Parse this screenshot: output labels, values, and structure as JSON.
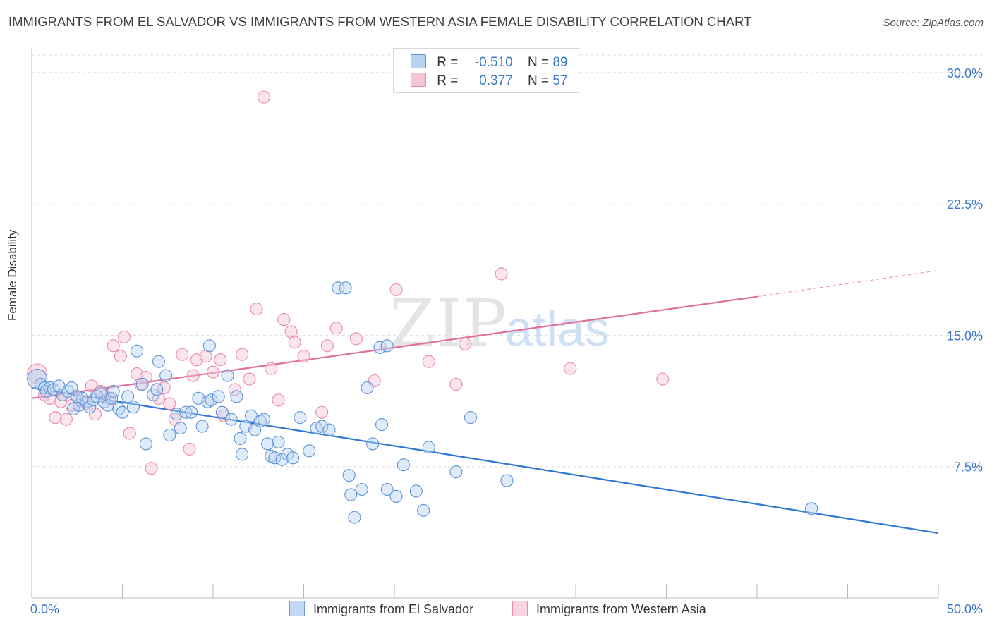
{
  "title": "IMMIGRANTS FROM EL SALVADOR VS IMMIGRANTS FROM WESTERN ASIA FEMALE DISABILITY CORRELATION CHART",
  "source": "Source: ZipAtlas.com",
  "watermark": {
    "zip": "ZIP",
    "atlas": "atlas"
  },
  "legend": {
    "r_label": "R =",
    "n_label": "N =",
    "rows": [
      {
        "r": "-0.510",
        "n": "89"
      },
      {
        "r": "0.377",
        "n": "57"
      }
    ]
  },
  "colors": {
    "blue_fill": "#b8d2f2",
    "blue_stroke": "#5e93d6",
    "blue_line": "#2f78d4",
    "pink_fill": "#f7c6d6",
    "pink_stroke": "#e98aaa",
    "pink_line": "#e0709a",
    "tick_text": "#3a77c8",
    "grid": "#dddddd"
  },
  "chart_data": {
    "type": "scatter",
    "title": "IMMIGRANTS FROM EL SALVADOR VS IMMIGRANTS FROM WESTERN ASIA FEMALE DISABILITY CORRELATION CHART",
    "xlabel": "",
    "ylabel": "Female Disability",
    "x_tick_labels": [
      "0.0%",
      "50.0%"
    ],
    "y_tick_labels": [
      "7.5%",
      "15.0%",
      "22.5%",
      "30.0%"
    ],
    "y_ticks": [
      7.5,
      15.0,
      22.5,
      30.0
    ],
    "xlim": [
      0,
      50
    ],
    "ylim": [
      0,
      31
    ],
    "grid": "horizontal dashed",
    "legend_position": "top-center",
    "series": [
      {
        "name": "Immigrants from El Salvador",
        "color": "#5e93d6",
        "r": -0.51,
        "n": 89,
        "trend": {
          "x": [
            0,
            50
          ],
          "y": [
            12.0,
            3.7
          ]
        },
        "points": [
          [
            0.3,
            12.5
          ],
          [
            0.5,
            12.2
          ],
          [
            0.7,
            12.0
          ],
          [
            0.8,
            11.8
          ],
          [
            1.0,
            12.0
          ],
          [
            1.2,
            11.9
          ],
          [
            1.5,
            12.1
          ],
          [
            1.7,
            11.6
          ],
          [
            2.0,
            11.8
          ],
          [
            2.2,
            12.0
          ],
          [
            2.3,
            10.8
          ],
          [
            2.6,
            11.0
          ],
          [
            2.8,
            11.4
          ],
          [
            3.0,
            11.2
          ],
          [
            3.2,
            10.9
          ],
          [
            3.4,
            11.3
          ],
          [
            3.6,
            11.5
          ],
          [
            3.8,
            11.7
          ],
          [
            4.0,
            11.2
          ],
          [
            4.2,
            11.0
          ],
          [
            4.4,
            11.4
          ],
          [
            4.8,
            10.8
          ],
          [
            5.0,
            10.6
          ],
          [
            5.3,
            11.5
          ],
          [
            5.6,
            10.9
          ],
          [
            5.8,
            14.1
          ],
          [
            6.1,
            12.2
          ],
          [
            6.3,
            8.8
          ],
          [
            6.7,
            11.6
          ],
          [
            7.0,
            13.5
          ],
          [
            7.4,
            12.7
          ],
          [
            7.6,
            9.3
          ],
          [
            8.0,
            10.5
          ],
          [
            8.2,
            9.7
          ],
          [
            8.5,
            10.6
          ],
          [
            8.8,
            10.6
          ],
          [
            9.2,
            11.4
          ],
          [
            9.4,
            9.8
          ],
          [
            9.7,
            11.2
          ],
          [
            9.9,
            11.3
          ],
          [
            9.8,
            14.4
          ],
          [
            10.3,
            11.5
          ],
          [
            10.5,
            10.6
          ],
          [
            10.8,
            12.7
          ],
          [
            11.0,
            10.2
          ],
          [
            11.3,
            11.5
          ],
          [
            11.5,
            9.1
          ],
          [
            11.6,
            8.2
          ],
          [
            11.8,
            9.8
          ],
          [
            12.1,
            10.4
          ],
          [
            12.3,
            9.6
          ],
          [
            12.6,
            10.1
          ],
          [
            12.8,
            10.2
          ],
          [
            13.0,
            8.8
          ],
          [
            13.2,
            8.1
          ],
          [
            13.4,
            8.0
          ],
          [
            13.6,
            8.9
          ],
          [
            13.8,
            7.9
          ],
          [
            14.1,
            8.2
          ],
          [
            14.4,
            8.0
          ],
          [
            14.8,
            10.3
          ],
          [
            15.3,
            8.4
          ],
          [
            15.7,
            9.7
          ],
          [
            16.0,
            9.8
          ],
          [
            16.4,
            9.6
          ],
          [
            16.9,
            17.7
          ],
          [
            17.3,
            17.7
          ],
          [
            17.5,
            7.0
          ],
          [
            17.6,
            5.9
          ],
          [
            17.8,
            4.6
          ],
          [
            18.2,
            6.2
          ],
          [
            18.5,
            12.0
          ],
          [
            18.8,
            8.8
          ],
          [
            19.2,
            14.3
          ],
          [
            19.6,
            14.4
          ],
          [
            19.6,
            6.2
          ],
          [
            19.3,
            9.9
          ],
          [
            20.1,
            5.8
          ],
          [
            20.5,
            7.6
          ],
          [
            21.2,
            6.1
          ],
          [
            21.6,
            5.0
          ],
          [
            21.9,
            8.6
          ],
          [
            23.4,
            7.2
          ],
          [
            24.2,
            10.3
          ],
          [
            26.2,
            6.7
          ],
          [
            43.0,
            5.1
          ],
          [
            2.5,
            11.5
          ],
          [
            4.5,
            11.8
          ],
          [
            6.9,
            11.9
          ]
        ]
      },
      {
        "name": "Immigrants from Western Asia",
        "color": "#e98aaa",
        "r": 0.377,
        "n": 57,
        "trend": {
          "x": [
            0,
            40
          ],
          "y": [
            11.4,
            17.2
          ]
        },
        "trend_dashed": {
          "x": [
            40,
            50
          ],
          "y": [
            17.2,
            18.7
          ]
        },
        "points": [
          [
            0.3,
            12.8
          ],
          [
            0.7,
            11.6
          ],
          [
            1.0,
            11.4
          ],
          [
            1.3,
            10.3
          ],
          [
            1.6,
            11.2
          ],
          [
            1.9,
            10.2
          ],
          [
            2.2,
            11.0
          ],
          [
            2.6,
            11.3
          ],
          [
            3.0,
            11.1
          ],
          [
            3.3,
            12.1
          ],
          [
            3.5,
            10.5
          ],
          [
            3.8,
            11.8
          ],
          [
            4.0,
            11.5
          ],
          [
            4.3,
            11.4
          ],
          [
            4.5,
            14.4
          ],
          [
            4.9,
            13.8
          ],
          [
            5.1,
            14.9
          ],
          [
            5.4,
            9.4
          ],
          [
            5.8,
            12.8
          ],
          [
            6.0,
            12.2
          ],
          [
            6.3,
            12.6
          ],
          [
            6.6,
            7.4
          ],
          [
            7.0,
            11.4
          ],
          [
            7.3,
            12.0
          ],
          [
            7.6,
            11.1
          ],
          [
            7.9,
            10.2
          ],
          [
            8.3,
            13.9
          ],
          [
            8.7,
            8.5
          ],
          [
            8.9,
            12.7
          ],
          [
            9.1,
            13.6
          ],
          [
            9.6,
            13.8
          ],
          [
            10.0,
            12.9
          ],
          [
            10.4,
            13.6
          ],
          [
            10.6,
            10.4
          ],
          [
            11.2,
            11.9
          ],
          [
            11.6,
            13.9
          ],
          [
            12.0,
            12.5
          ],
          [
            12.4,
            16.5
          ],
          [
            12.8,
            28.6
          ],
          [
            13.2,
            13.1
          ],
          [
            13.6,
            11.3
          ],
          [
            13.9,
            15.9
          ],
          [
            14.3,
            15.2
          ],
          [
            14.5,
            14.6
          ],
          [
            15.0,
            13.8
          ],
          [
            16.0,
            10.6
          ],
          [
            16.3,
            14.4
          ],
          [
            16.8,
            15.4
          ],
          [
            17.9,
            14.8
          ],
          [
            18.9,
            12.4
          ],
          [
            20.1,
            17.6
          ],
          [
            21.9,
            13.5
          ],
          [
            23.4,
            12.2
          ],
          [
            23.9,
            14.5
          ],
          [
            25.9,
            18.5
          ],
          [
            29.7,
            13.1
          ],
          [
            34.8,
            12.5
          ]
        ]
      }
    ]
  }
}
